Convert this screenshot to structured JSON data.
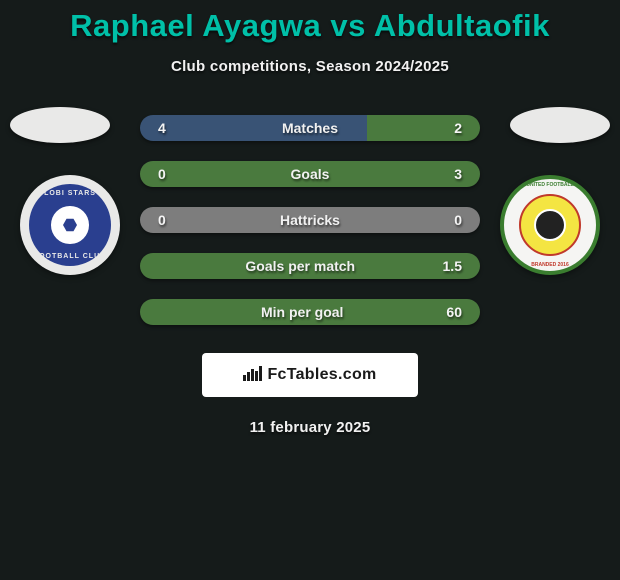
{
  "colors": {
    "background": "#151b1a",
    "title": "#00c0a8",
    "text": "#ffffff",
    "bar_left": "#395375",
    "bar_right": "#4a7a3e",
    "bar_full_green": "#4a7a3e",
    "bar_neutral_gray": "#7d7d7d",
    "brand_box_bg": "#ffffff",
    "brand_text": "#1a1a1a"
  },
  "title": {
    "player1": "Raphael Ayagwa",
    "vs": "vs",
    "player2": "Abdultaofik"
  },
  "subtitle": "Club competitions, Season 2024/2025",
  "crest_left": {
    "top_text": "LOBI STARS",
    "bottom_text": "FOOTBALL CLUB"
  },
  "crest_right": {
    "top_text": "UNITED FOOTBALL",
    "bottom_text": "BRANDED 2016"
  },
  "stats": [
    {
      "label": "Matches",
      "left_val": "4",
      "right_val": "2",
      "left_color": "#395375",
      "right_color": "#4a7a3e",
      "left_pct": 66.7,
      "right_pct": 33.3
    },
    {
      "label": "Goals",
      "left_val": "0",
      "right_val": "3",
      "left_color": "#4a7a3e",
      "right_color": "#4a7a3e",
      "left_pct": 0,
      "right_pct": 100
    },
    {
      "label": "Hattricks",
      "left_val": "0",
      "right_val": "0",
      "left_color": "#7d7d7d",
      "right_color": "#7d7d7d",
      "left_pct": 50,
      "right_pct": 50
    },
    {
      "label": "Goals per match",
      "left_val": "",
      "right_val": "1.5",
      "left_color": "#4a7a3e",
      "right_color": "#4a7a3e",
      "left_pct": 0,
      "right_pct": 100
    },
    {
      "label": "Min per goal",
      "left_val": "",
      "right_val": "60",
      "left_color": "#4a7a3e",
      "right_color": "#4a7a3e",
      "left_pct": 0,
      "right_pct": 100
    }
  ],
  "brand": {
    "icon": "📊",
    "text": "FcTables.com"
  },
  "date": "11 february 2025"
}
